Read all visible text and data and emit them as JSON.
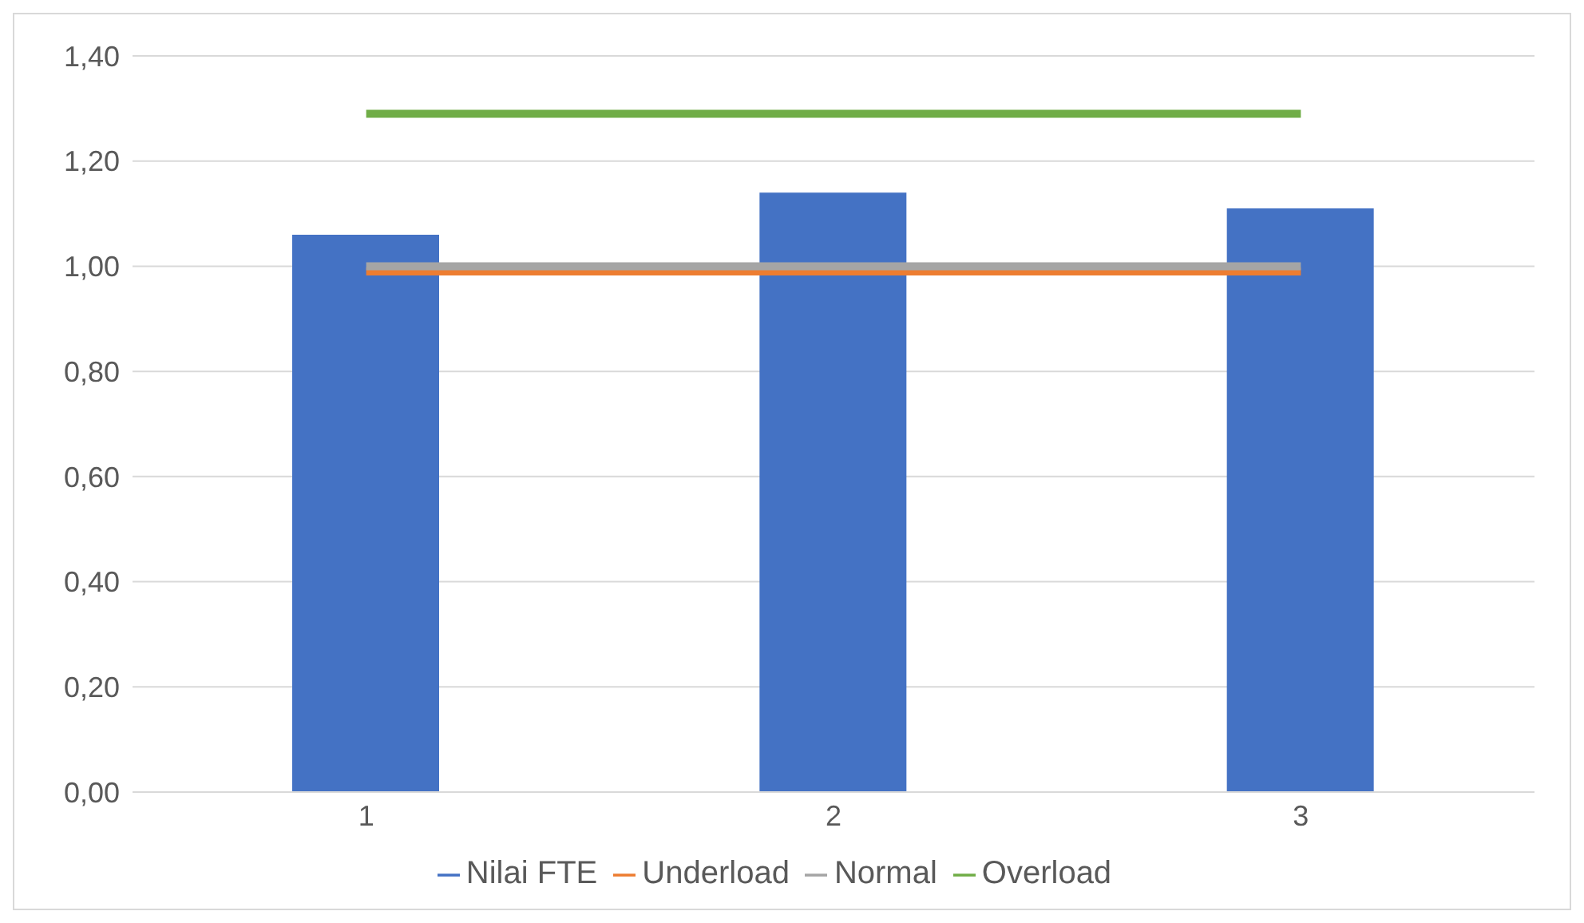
{
  "chart_data": {
    "type": "bar",
    "categories": [
      "1",
      "2",
      "3"
    ],
    "series": [
      {
        "name": "Nilai FTE",
        "color": "#4472c4",
        "values": [
          1.06,
          1.14,
          1.11
        ]
      },
      {
        "name": "Underload",
        "type": "line",
        "color": "#ed7d31",
        "values": [
          0.99,
          0.99,
          0.99
        ]
      },
      {
        "name": "Normal",
        "type": "line",
        "color": "#a5a5a5",
        "values": [
          1.0,
          1.0,
          1.0
        ]
      },
      {
        "name": "Overload",
        "type": "line",
        "color": "#70ad47",
        "values": [
          1.29,
          1.29,
          1.29
        ]
      }
    ],
    "ylim": [
      0,
      1.4
    ],
    "yticks": [
      {
        "value": 0,
        "label": "0,00"
      },
      {
        "value": 0.2,
        "label": "0,20"
      },
      {
        "value": 0.4,
        "label": "0,40"
      },
      {
        "value": 0.6,
        "label": "0,60"
      },
      {
        "value": 0.8,
        "label": "0,80"
      },
      {
        "value": 1.0,
        "label": "1,00"
      },
      {
        "value": 1.2,
        "label": "1,20"
      },
      {
        "value": 1.4,
        "label": "1,40"
      }
    ],
    "grid": "y",
    "legend": "bottom",
    "marker": "none",
    "line_style": "solid"
  }
}
